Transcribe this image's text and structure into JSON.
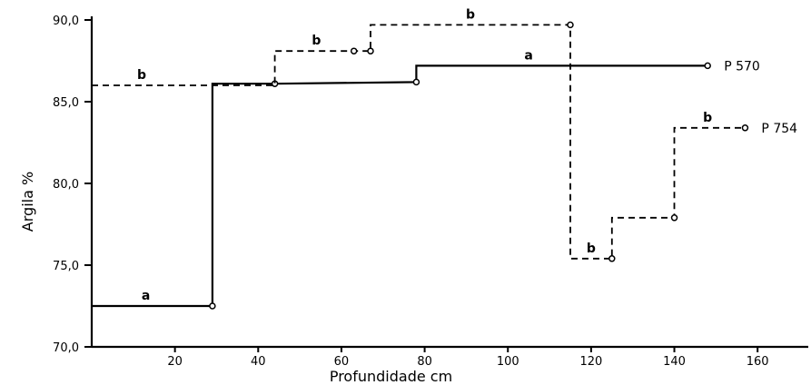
{
  "chart_data": {
    "type": "line",
    "xlabel": "Profundidade cm",
    "ylabel": "Argila %",
    "xlim": [
      0,
      170
    ],
    "ylim": [
      70,
      90
    ],
    "x_ticks": [
      20,
      40,
      60,
      80,
      100,
      120,
      140,
      160
    ],
    "x_tick_labels": [
      "20",
      "40",
      "60",
      "80",
      "100",
      "120",
      "140",
      "160"
    ],
    "y_ticks": [
      70,
      75,
      80,
      85,
      90
    ],
    "y_tick_labels": [
      "70,0",
      "75,0",
      "80,0",
      "85,0",
      "90,0"
    ],
    "grid": false,
    "legend": "none",
    "series": [
      {
        "name": "P 570",
        "style": "solid",
        "step": true,
        "points": [
          {
            "x": 0,
            "y": 72.5
          },
          {
            "x": 29,
            "y": 72.5
          },
          {
            "x": 29,
            "y": 86.1
          },
          {
            "x": 44,
            "y": 86.1
          },
          {
            "x": 78,
            "y": 86.2
          },
          {
            "x": 78,
            "y": 87.2
          },
          {
            "x": 148,
            "y": 87.2
          }
        ],
        "markers": [
          {
            "x": 29,
            "y": 72.5
          },
          {
            "x": 44,
            "y": 86.1
          },
          {
            "x": 78,
            "y": 86.2
          },
          {
            "x": 148,
            "y": 87.2
          }
        ]
      },
      {
        "name": "P 754",
        "style": "dashed",
        "step": true,
        "points": [
          {
            "x": 0,
            "y": 86.0
          },
          {
            "x": 44,
            "y": 86.0
          },
          {
            "x": 44,
            "y": 88.1
          },
          {
            "x": 63,
            "y": 88.1
          },
          {
            "x": 67,
            "y": 88.1
          },
          {
            "x": 67,
            "y": 89.7
          },
          {
            "x": 115,
            "y": 89.7
          },
          {
            "x": 115,
            "y": 75.4
          },
          {
            "x": 125,
            "y": 75.4
          },
          {
            "x": 125,
            "y": 77.9
          },
          {
            "x": 140,
            "y": 77.9
          },
          {
            "x": 140,
            "y": 83.4
          },
          {
            "x": 157,
            "y": 83.4
          }
        ],
        "markers": [
          {
            "x": 63,
            "y": 88.1
          },
          {
            "x": 67,
            "y": 88.1
          },
          {
            "x": 115,
            "y": 89.7
          },
          {
            "x": 125,
            "y": 75.4
          },
          {
            "x": 140,
            "y": 77.9
          },
          {
            "x": 157,
            "y": 83.4
          }
        ]
      }
    ],
    "segment_labels": [
      {
        "text": "a",
        "x": 13,
        "y": 72.5
      },
      {
        "text": "b",
        "x": 12,
        "y": 86.0
      },
      {
        "text": "b",
        "x": 54,
        "y": 88.1
      },
      {
        "text": "b",
        "x": 91,
        "y": 89.7
      },
      {
        "text": "a",
        "x": 105,
        "y": 87.2
      },
      {
        "text": "b",
        "x": 120,
        "y": 75.4
      },
      {
        "text": "b",
        "x": 148,
        "y": 83.4
      }
    ],
    "series_labels": [
      {
        "text": "P 570",
        "series": "P 570"
      },
      {
        "text": "P 754",
        "series": "P 754"
      }
    ]
  }
}
